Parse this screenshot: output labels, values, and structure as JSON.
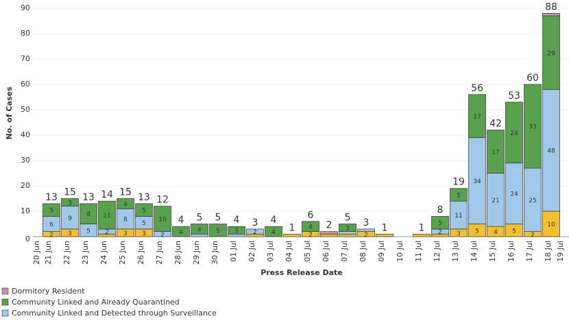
{
  "chart_data": {
    "type": "stacked_bar",
    "x_label": "Press Release Date",
    "y_label": "No. of Cases",
    "categories": [
      "20 Jun",
      "21 Jun",
      "22 Jun",
      "23 Jun",
      "24 Jun",
      "25 Jun",
      "26 Jun",
      "27 Jun",
      "28 Jun",
      "29 Jun",
      "30 Jun",
      "01 Jul",
      "02 Jul",
      "03 Jul",
      "04 Jul",
      "05 Jul",
      "06 Jul",
      "07 Jul",
      "08 Jul",
      "09 Jul",
      "10 Jul",
      "11 Jul",
      "12 Jul",
      "13 Jul",
      "14 Jul",
      "15 Jul",
      "16 Jul",
      "17 Jul",
      "18 Jul",
      "19 Jul"
    ],
    "series": [
      {
        "name": "Dormitory Resident",
        "color": "#c98fb4",
        "values": [
          null,
          0,
          0,
          0,
          0,
          0,
          0,
          0,
          0,
          0,
          0,
          0,
          0,
          0,
          0,
          0,
          1,
          0,
          0,
          0,
          null,
          0,
          0,
          0,
          0,
          0,
          0,
          0,
          1,
          null
        ]
      },
      {
        "name": "Community Linked and Already Quarantined",
        "color": "#59a14f",
        "values": [
          null,
          5,
          3,
          8,
          11,
          4,
          5,
          10,
          4,
          4,
          5,
          3,
          0,
          4,
          0,
          4,
          0,
          3,
          0,
          0,
          null,
          0,
          5,
          5,
          17,
          17,
          24,
          33,
          29,
          null
        ]
      },
      {
        "name": "Community Linked and Detected through Surveillance",
        "color": "#a0c8e8",
        "values": [
          null,
          6,
          9,
          5,
          2,
          8,
          5,
          2,
          0,
          1,
          0,
          1,
          2,
          0,
          0,
          0,
          0,
          1,
          1,
          0,
          null,
          0,
          2,
          11,
          34,
          21,
          24,
          25,
          48,
          null
        ]
      },
      {
        "color": "#f4c02c",
        "values": [
          null,
          2,
          3,
          0,
          1,
          3,
          3,
          0,
          0,
          0,
          0,
          0,
          1,
          0,
          1,
          2,
          1,
          1,
          2,
          1,
          null,
          1,
          1,
          3,
          5,
          4,
          5,
          2,
          10,
          null
        ]
      }
    ],
    "totals": [
      null,
      13,
      15,
      13,
      14,
      15,
      13,
      12,
      4,
      5,
      5,
      4,
      3,
      4,
      1,
      6,
      2,
      5,
      3,
      1,
      null,
      1,
      8,
      19,
      56,
      42,
      53,
      60,
      88,
      null
    ],
    "ylim": [
      0,
      90
    ],
    "yticks": [
      0,
      10,
      20,
      30,
      40,
      50,
      60,
      70,
      80,
      90
    ],
    "grid": true
  }
}
